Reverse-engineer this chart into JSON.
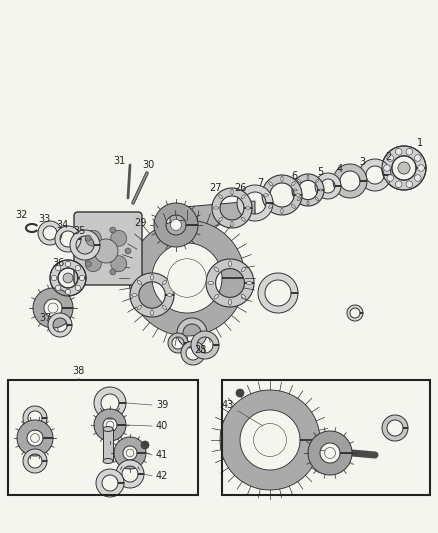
{
  "bg_color": "#f5f5f0",
  "line_color": "#2a2a2a",
  "label_color": "#2a2a2a",
  "fig_width": 4.38,
  "fig_height": 5.33,
  "dpi": 100
}
